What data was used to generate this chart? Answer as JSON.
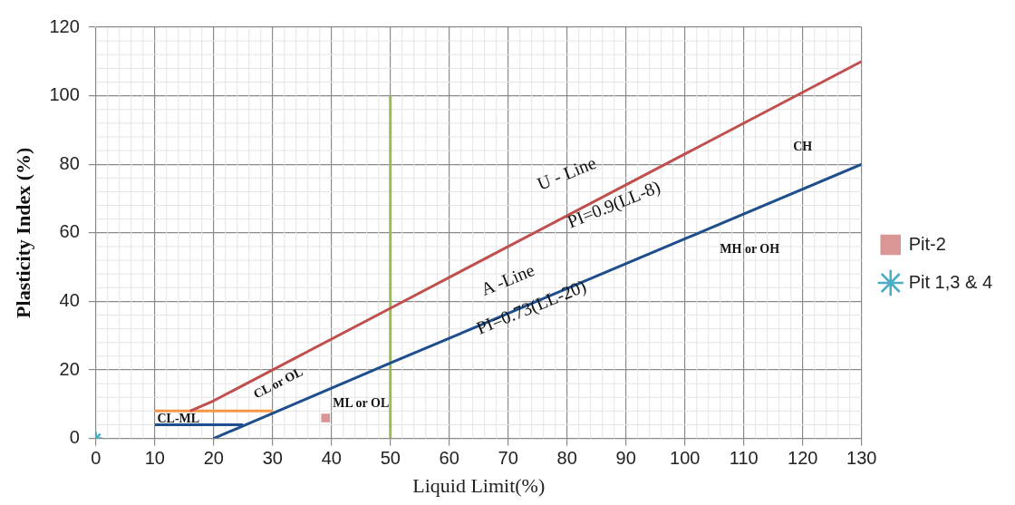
{
  "chart_data": {
    "type": "line",
    "xlabel": "Liquid Limit(%)",
    "ylabel": "Plasticity Index (%)",
    "xlim": [
      0,
      130
    ],
    "xticks": [
      0,
      10,
      20,
      30,
      40,
      50,
      60,
      70,
      80,
      90,
      100,
      110,
      120,
      130
    ],
    "ylim": [
      0,
      120
    ],
    "yticks": [
      0,
      20,
      40,
      60,
      80,
      100,
      120
    ],
    "grid": true,
    "legend": "right",
    "line_style": "solid",
    "series": [
      {
        "color": "#c0504d",
        "x": [
          16,
          20,
          50,
          130
        ],
        "values": [
          8,
          11,
          38,
          110
        ],
        "marker": "none"
      },
      {
        "color": "#1f4e8c",
        "x": [
          20,
          50,
          130
        ],
        "values": [
          0,
          22,
          80
        ],
        "marker": "none"
      },
      {
        "color": "#1f4e8c",
        "x": [
          10,
          25
        ],
        "values": [
          4,
          4
        ],
        "marker": "none"
      },
      {
        "color": "#f79646",
        "x": [
          10,
          30
        ],
        "values": [
          8,
          8
        ],
        "marker": "none"
      },
      {
        "color": "#9bbb59",
        "x": [
          50,
          50
        ],
        "values": [
          0,
          100
        ],
        "marker": "none"
      },
      {
        "type": "scatter",
        "name": "Pit-2",
        "color": "#d99694",
        "x": [
          39
        ],
        "values": [
          6
        ],
        "marker": "square"
      },
      {
        "type": "scatter",
        "name": "Pit 1,3 & 4",
        "color": "#4bacc6",
        "x": [
          0
        ],
        "values": [
          0
        ],
        "marker": "cross"
      }
    ],
    "annotations": [
      "U - Line",
      "PI=0.9(LL-8)",
      "A -Line",
      "PI=0.73(LL-20)",
      "CL or OL",
      "ML or OL",
      "CL-ML",
      "MH or OH",
      "CH"
    ]
  }
}
